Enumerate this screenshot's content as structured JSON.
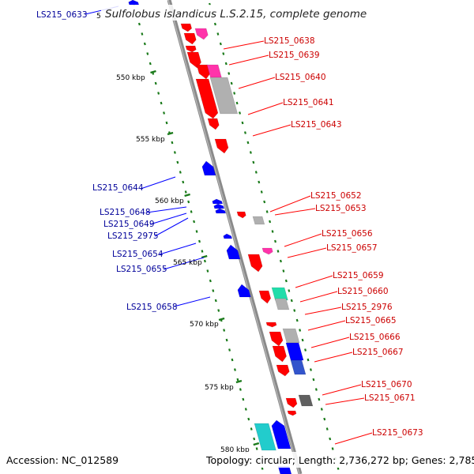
{
  "title": "Sulfolobus islandicus L.S.2.15, complete genome",
  "footer": {
    "accession": "Accession: NC_012589",
    "summary": "Topology: circular; Length: 2,736,272 bp; Genes: 2,785"
  },
  "colors": {
    "forward": "#ff0000",
    "reverse": "#0000ff",
    "magenta": "#ff33aa",
    "gray": "#b0b0b0",
    "dark_gray": "#606060",
    "teal": "#22ddaa",
    "cyan": "#22cccc",
    "backbone": "#8a8a8a",
    "tick_green": "#1a7a1a",
    "label_forward": "#cc0000",
    "label_reverse": "#000099"
  },
  "kbp_marks": [
    {
      "label": "550 kbp"
    },
    {
      "label": "555 kbp"
    },
    {
      "label": "560 kbp"
    },
    {
      "label": "565 kbp"
    },
    {
      "label": "570 kbp"
    },
    {
      "label": "575 kbp"
    },
    {
      "label": "580 kbp"
    }
  ],
  "partial_kbp_label": "5",
  "forward_labels": [
    "LS215_0638",
    "LS215_0639",
    "LS215_0640",
    "LS215_0641",
    "LS215_0643",
    "LS215_0652",
    "LS215_0653",
    "LS215_0656",
    "LS215_0657",
    "LS215_0659",
    "LS215_0660",
    "LS215_2976",
    "LS215_0665",
    "LS215_0666",
    "LS215_0667",
    "LS215_0670",
    "LS215_0671",
    "LS215_0673"
  ],
  "reverse_labels": [
    "LS215_0633",
    "LS215_0644",
    "LS215_0648",
    "LS215_0649",
    "LS215_2975",
    "LS215_0654",
    "LS215_0655",
    "LS215_0658"
  ]
}
